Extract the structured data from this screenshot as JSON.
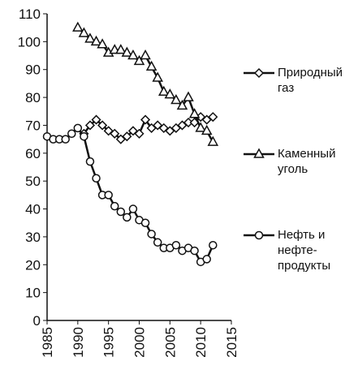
{
  "chart_data": {
    "type": "line",
    "x": [
      1985,
      1986,
      1987,
      1988,
      1989,
      1990,
      1991,
      1992,
      1993,
      1994,
      1995,
      1996,
      1997,
      1998,
      1999,
      2000,
      2001,
      2002,
      2003,
      2004,
      2005,
      2006,
      2007,
      2008,
      2009,
      2010,
      2011,
      2012
    ],
    "series": [
      {
        "name": "Природный газ",
        "color": "#111111",
        "marker": "diamond",
        "values": [
          null,
          null,
          null,
          null,
          null,
          null,
          67,
          70,
          72,
          70,
          68,
          67,
          65,
          66,
          68,
          67,
          72,
          69,
          70,
          69,
          68,
          69,
          70,
          71,
          71,
          73,
          72,
          73
        ]
      },
      {
        "name": "Каменный уголь",
        "color": "#111111",
        "marker": "triangle",
        "values": [
          null,
          null,
          null,
          null,
          null,
          105,
          103,
          101,
          100,
          99,
          96,
          97,
          97,
          96,
          95,
          93,
          95,
          91,
          87,
          82,
          81,
          79,
          77,
          80,
          74,
          69,
          68,
          64
        ]
      },
      {
        "name": "Нефть и нефте-продукты",
        "color": "#111111",
        "marker": "circle",
        "values": [
          66,
          65,
          65,
          65,
          67,
          69,
          66,
          57,
          51,
          45,
          45,
          41,
          39,
          37,
          40,
          36,
          35,
          31,
          28,
          26,
          26,
          27,
          25,
          26,
          25,
          21,
          22,
          27
        ]
      }
    ],
    "xlim": [
      1985,
      2015
    ],
    "xticks": [
      1985,
      1990,
      1995,
      2000,
      2005,
      2010,
      2015
    ],
    "ylim": [
      0,
      110
    ],
    "yticks": [
      0,
      10,
      20,
      30,
      40,
      50,
      60,
      70,
      80,
      90,
      100,
      110
    ],
    "grid": false
  }
}
